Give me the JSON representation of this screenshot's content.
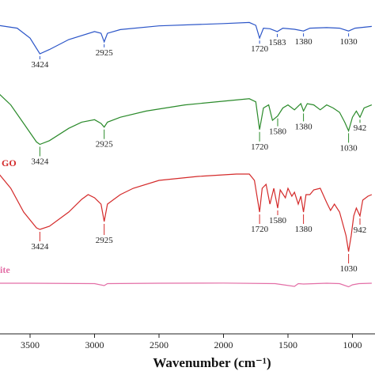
{
  "chart_data": {
    "type": "line",
    "xlabel": "Wavenumber (cm⁻¹)",
    "xlim": [
      3750,
      850
    ],
    "xticks": [
      3500,
      3000,
      2500,
      2000,
      1500,
      1000
    ],
    "grid": false,
    "series": [
      {
        "color": "#2b55c8",
        "points": [
          [
            3750,
            1
          ],
          [
            3600,
            0.9
          ],
          [
            3500,
            0.55
          ],
          [
            3424,
            0
          ],
          [
            3350,
            0.15
          ],
          [
            3200,
            0.5
          ],
          [
            3000,
            0.78
          ],
          [
            2950,
            0.72
          ],
          [
            2925,
            0.42
          ],
          [
            2900,
            0.72
          ],
          [
            2800,
            0.85
          ],
          [
            2500,
            0.98
          ],
          [
            2000,
            1.06
          ],
          [
            1800,
            1.1
          ],
          [
            1750,
            1.0
          ],
          [
            1720,
            0.55
          ],
          [
            1690,
            0.9
          ],
          [
            1640,
            0.88
          ],
          [
            1583,
            0.78
          ],
          [
            1540,
            0.9
          ],
          [
            1450,
            0.86
          ],
          [
            1380,
            0.8
          ],
          [
            1330,
            0.9
          ],
          [
            1200,
            0.92
          ],
          [
            1100,
            0.9
          ],
          [
            1030,
            0.8
          ],
          [
            980,
            0.9
          ],
          [
            850,
            0.96
          ]
        ],
        "peaks": [
          3424,
          2925,
          1720,
          1583,
          1380,
          1030
        ]
      },
      {
        "color": "#2a8a2a",
        "points": [
          [
            3750,
            1
          ],
          [
            3650,
            0.8
          ],
          [
            3550,
            0.5
          ],
          [
            3450,
            0.2
          ],
          [
            3424,
            0.16
          ],
          [
            3350,
            0.22
          ],
          [
            3200,
            0.42
          ],
          [
            3100,
            0.52
          ],
          [
            3000,
            0.56
          ],
          [
            2950,
            0.5
          ],
          [
            2925,
            0.44
          ],
          [
            2900,
            0.52
          ],
          [
            2800,
            0.6
          ],
          [
            2600,
            0.7
          ],
          [
            2300,
            0.8
          ],
          [
            2000,
            0.86
          ],
          [
            1800,
            0.9
          ],
          [
            1750,
            0.85
          ],
          [
            1720,
            0.4
          ],
          [
            1690,
            0.75
          ],
          [
            1650,
            0.8
          ],
          [
            1620,
            0.55
          ],
          [
            1580,
            0.62
          ],
          [
            1540,
            0.75
          ],
          [
            1500,
            0.8
          ],
          [
            1450,
            0.72
          ],
          [
            1400,
            0.82
          ],
          [
            1380,
            0.7
          ],
          [
            1350,
            0.82
          ],
          [
            1300,
            0.8
          ],
          [
            1250,
            0.72
          ],
          [
            1200,
            0.8
          ],
          [
            1150,
            0.75
          ],
          [
            1100,
            0.68
          ],
          [
            1060,
            0.52
          ],
          [
            1030,
            0.38
          ],
          [
            1000,
            0.6
          ],
          [
            970,
            0.7
          ],
          [
            942,
            0.6
          ],
          [
            910,
            0.75
          ],
          [
            850,
            0.8
          ]
        ],
        "peaks": [
          3424,
          2925,
          1720,
          1580,
          1380,
          1030,
          942
        ]
      },
      {
        "color": "#d42a2a",
        "points": [
          [
            3750,
            1
          ],
          [
            3650,
            0.8
          ],
          [
            3550,
            0.5
          ],
          [
            3450,
            0.3
          ],
          [
            3424,
            0.28
          ],
          [
            3350,
            0.32
          ],
          [
            3200,
            0.5
          ],
          [
            3100,
            0.66
          ],
          [
            3050,
            0.72
          ],
          [
            3000,
            0.68
          ],
          [
            2950,
            0.6
          ],
          [
            2925,
            0.38
          ],
          [
            2900,
            0.6
          ],
          [
            2850,
            0.66
          ],
          [
            2800,
            0.72
          ],
          [
            2700,
            0.8
          ],
          [
            2500,
            0.9
          ],
          [
            2200,
            0.95
          ],
          [
            1900,
            0.98
          ],
          [
            1800,
            0.98
          ],
          [
            1760,
            0.9
          ],
          [
            1720,
            0.5
          ],
          [
            1700,
            0.8
          ],
          [
            1670,
            0.85
          ],
          [
            1640,
            0.6
          ],
          [
            1610,
            0.8
          ],
          [
            1580,
            0.55
          ],
          [
            1560,
            0.78
          ],
          [
            1520,
            0.68
          ],
          [
            1500,
            0.8
          ],
          [
            1470,
            0.7
          ],
          [
            1450,
            0.75
          ],
          [
            1420,
            0.6
          ],
          [
            1400,
            0.7
          ],
          [
            1380,
            0.5
          ],
          [
            1360,
            0.72
          ],
          [
            1330,
            0.72
          ],
          [
            1300,
            0.78
          ],
          [
            1250,
            0.8
          ],
          [
            1200,
            0.62
          ],
          [
            1170,
            0.52
          ],
          [
            1140,
            0.6
          ],
          [
            1100,
            0.5
          ],
          [
            1080,
            0.38
          ],
          [
            1050,
            0.2
          ],
          [
            1030,
            0.0
          ],
          [
            1010,
            0.2
          ],
          [
            990,
            0.45
          ],
          [
            970,
            0.55
          ],
          [
            942,
            0.45
          ],
          [
            920,
            0.65
          ],
          [
            880,
            0.7
          ],
          [
            850,
            0.72
          ]
        ],
        "peaks": [
          3424,
          2925,
          1720,
          1580,
          1380,
          1030,
          942
        ]
      },
      {
        "color": "#e36ea6",
        "points": [
          [
            3750,
            0.5
          ],
          [
            3500,
            0.5
          ],
          [
            3000,
            0.45
          ],
          [
            2925,
            0.2
          ],
          [
            2900,
            0.45
          ],
          [
            2500,
            0.5
          ],
          [
            2000,
            0.52
          ],
          [
            1600,
            0.45
          ],
          [
            1450,
            0.1
          ],
          [
            1420,
            0.45
          ],
          [
            1380,
            0.4
          ],
          [
            1200,
            0.5
          ],
          [
            1100,
            0.45
          ],
          [
            1030,
            0.05
          ],
          [
            1000,
            0.3
          ],
          [
            950,
            0.45
          ],
          [
            850,
            0.5
          ]
        ],
        "peaks": []
      }
    ],
    "series_labels": [
      "GO",
      "ite"
    ]
  }
}
